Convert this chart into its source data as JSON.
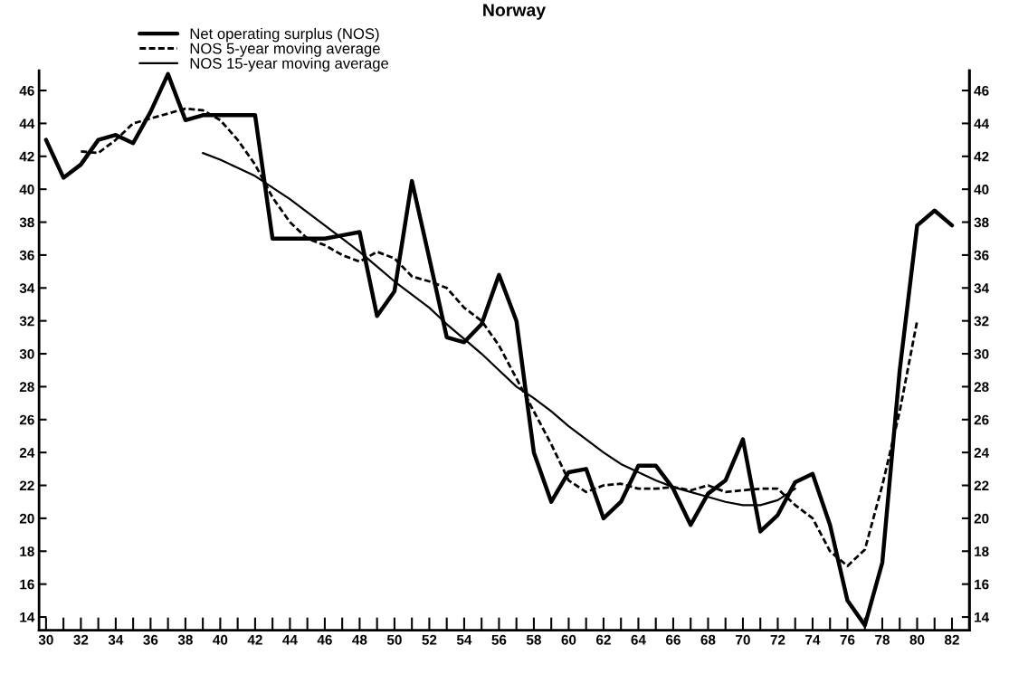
{
  "chart_data": {
    "type": "line",
    "title": "Norway",
    "x": [
      30,
      31,
      32,
      33,
      34,
      35,
      36,
      37,
      38,
      39,
      40,
      41,
      42,
      43,
      44,
      45,
      46,
      47,
      48,
      49,
      50,
      51,
      52,
      53,
      54,
      55,
      56,
      57,
      58,
      59,
      60,
      61,
      62,
      63,
      64,
      65,
      66,
      67,
      68,
      69,
      70,
      71,
      72,
      73,
      74,
      75,
      76,
      77,
      78,
      79,
      80,
      81,
      82
    ],
    "series": [
      {
        "name": "Net operating surplus (NOS)",
        "color": "#000000",
        "line_style": "solid",
        "values": [
          43.0,
          40.7,
          41.5,
          43.0,
          43.3,
          42.8,
          44.7,
          47.0,
          44.2,
          44.5,
          44.5,
          44.5,
          44.5,
          37.0,
          37.0,
          37.0,
          37.0,
          37.2,
          37.4,
          32.3,
          33.8,
          40.5,
          35.8,
          31.0,
          30.7,
          31.8,
          34.8,
          32.0,
          24.0,
          21.0,
          22.8,
          23.0,
          20.0,
          21.0,
          23.2,
          23.2,
          21.8,
          19.6,
          21.5,
          22.3,
          24.8,
          19.2,
          20.2,
          22.2,
          22.7,
          19.6,
          15.0,
          13.5,
          17.3,
          29.0,
          37.8,
          38.7,
          37.8
        ]
      },
      {
        "name": "NOS 5-year moving average",
        "color": "#000000",
        "line_style": "dashed",
        "x": [
          32,
          33,
          34,
          35,
          36,
          37,
          38,
          39,
          40,
          41,
          42,
          43,
          44,
          45,
          46,
          47,
          48,
          49,
          50,
          51,
          52,
          53,
          54,
          55,
          56,
          57,
          58,
          59,
          60,
          61,
          62,
          63,
          64,
          65,
          66,
          67,
          68,
          69,
          70,
          71,
          72,
          73,
          74,
          75,
          76,
          77,
          78,
          79,
          80
        ],
        "values": [
          42.3,
          42.2,
          43.0,
          44.0,
          44.3,
          44.6,
          44.9,
          44.8,
          44.2,
          43.0,
          41.5,
          39.5,
          38.0,
          37.0,
          36.6,
          36.0,
          35.6,
          36.2,
          35.8,
          34.7,
          34.4,
          34.0,
          32.8,
          32.0,
          30.5,
          28.5,
          26.5,
          24.5,
          22.3,
          21.6,
          22.0,
          22.1,
          21.8,
          21.8,
          21.9,
          21.7,
          22.0,
          21.6,
          21.7,
          21.8,
          21.8,
          20.8,
          20.0,
          18.0,
          17.1,
          18.1,
          22.0,
          26.5,
          32.0
        ]
      },
      {
        "name": "NOS 15-year moving average",
        "color": "#000000",
        "line_style": "solid",
        "x": [
          39,
          40,
          41,
          42,
          43,
          44,
          45,
          46,
          47,
          48,
          49,
          50,
          51,
          52,
          53,
          54,
          55,
          56,
          57,
          58,
          59,
          60,
          61,
          62,
          63,
          64,
          65,
          66,
          67,
          68,
          69,
          70,
          71,
          72,
          73
        ],
        "values": [
          42.2,
          41.8,
          41.3,
          40.8,
          40.1,
          39.4,
          38.6,
          37.8,
          37.0,
          36.2,
          35.3,
          34.4,
          33.6,
          32.8,
          31.8,
          30.9,
          30.0,
          29.0,
          28.0,
          27.3,
          26.5,
          25.6,
          24.8,
          24.0,
          23.3,
          22.8,
          22.3,
          21.9,
          21.6,
          21.3,
          21.0,
          20.8,
          20.8,
          21.1,
          21.8
        ]
      }
    ],
    "xlim": [
      29.6,
      83
    ],
    "xticks": [
      30,
      {
        "value": 31,
        "label": null
      },
      32,
      {
        "value": 33,
        "label": null
      },
      34,
      {
        "value": 35,
        "label": null
      },
      36,
      {
        "value": 37,
        "label": null
      },
      38,
      {
        "value": 39,
        "label": null
      },
      40,
      {
        "value": 41,
        "label": null
      },
      42,
      {
        "value": 43,
        "label": null
      },
      44,
      {
        "value": 45,
        "label": null
      },
      46,
      {
        "value": 47,
        "label": null
      },
      48,
      {
        "value": 49,
        "label": null
      },
      50,
      {
        "value": 51,
        "label": null
      },
      52,
      {
        "value": 53,
        "label": null
      },
      54,
      {
        "value": 55,
        "label": null
      },
      56,
      {
        "value": 57,
        "label": null
      },
      58,
      {
        "value": 59,
        "label": null
      },
      60,
      {
        "value": 61,
        "label": null
      },
      62,
      {
        "value": 63,
        "label": null
      },
      64,
      {
        "value": 65,
        "label": null
      },
      66,
      {
        "value": 67,
        "label": null
      },
      68,
      {
        "value": 69,
        "label": null
      },
      70,
      {
        "value": 71,
        "label": null
      },
      72,
      {
        "value": 73,
        "label": null
      },
      74,
      {
        "value": 75,
        "label": null
      },
      76,
      {
        "value": 77,
        "label": null
      },
      78,
      {
        "value": 79,
        "label": null
      },
      80,
      {
        "value": 81,
        "label": null
      },
      82
    ],
    "ylim": [
      13.2,
      47.2
    ],
    "yticks": [
      14,
      16,
      18,
      20,
      22,
      24,
      26,
      28,
      30,
      32,
      34,
      36,
      38,
      40,
      42,
      44,
      46
    ],
    "y2lim": [
      13.2,
      47.2
    ],
    "y2ticks": [
      14,
      16,
      18,
      20,
      22,
      24,
      26,
      28,
      30,
      32,
      34,
      36,
      38,
      40,
      42,
      44,
      46
    ],
    "legend": "top left",
    "grid": false,
    "marker": "none"
  }
}
